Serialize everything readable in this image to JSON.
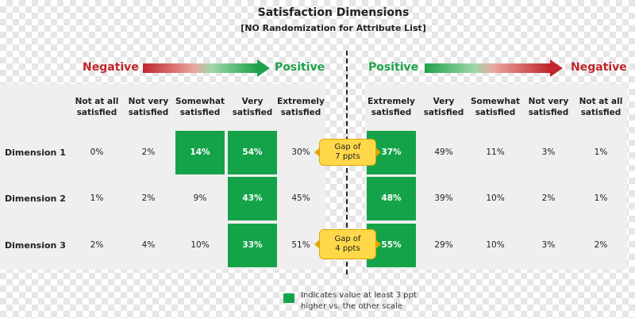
{
  "chart_data": {
    "type": "table",
    "title": "Satisfaction Dimensions",
    "subtitle": "[NO Randomization  for Attribute List]",
    "left_scale": {
      "arrow_start": "Negative",
      "arrow_end": "Positive",
      "columns": [
        "Not at all satisfied",
        "Not very satisfied",
        "Somewhat satisfied",
        "Very satisfied",
        "Extremely satisfied"
      ],
      "rows": [
        {
          "label": "Dimension 1",
          "values": [
            "0%",
            "2%",
            "14%",
            "54%",
            "30%"
          ],
          "highlight": [
            false,
            false,
            true,
            true,
            false
          ]
        },
        {
          "label": "Dimension 2",
          "values": [
            "1%",
            "2%",
            "9%",
            "43%",
            "45%"
          ],
          "highlight": [
            false,
            false,
            false,
            true,
            false
          ]
        },
        {
          "label": "Dimension 3",
          "values": [
            "2%",
            "4%",
            "10%",
            "33%",
            "51%"
          ],
          "highlight": [
            false,
            false,
            false,
            true,
            false
          ]
        }
      ]
    },
    "right_scale": {
      "arrow_start": "Positive",
      "arrow_end": "Negative",
      "columns": [
        "Extremely satisfied",
        "Very satisfied",
        "Somewhat satisfied",
        "Not very satisfied",
        "Not at all satisfied"
      ],
      "rows": [
        {
          "label": "Dimension 1",
          "values": [
            "37%",
            "49%",
            "11%",
            "3%",
            "1%"
          ],
          "highlight": [
            true,
            false,
            false,
            false,
            false
          ]
        },
        {
          "label": "Dimension 2",
          "values": [
            "48%",
            "39%",
            "10%",
            "2%",
            "1%"
          ],
          "highlight": [
            true,
            false,
            false,
            false,
            false
          ]
        },
        {
          "label": "Dimension 3",
          "values": [
            "55%",
            "29%",
            "10%",
            "3%",
            "2%"
          ],
          "highlight": [
            true,
            false,
            false,
            false,
            false
          ]
        }
      ]
    },
    "callouts": [
      {
        "row": "Dimension 1",
        "text": "Gap of\n7 ppts"
      },
      {
        "row": "Dimension 3",
        "text": "Gap of\n4 ppts"
      }
    ],
    "legend": {
      "text": "Indicates value at least 3 ppt\nhigher  vs. the other scale",
      "color": "#15a34a"
    },
    "colors": {
      "green": "#15a34a",
      "negative": "#c0262b",
      "positive": "#20a24a",
      "callout": "#ffd84a",
      "panel": "#efefef"
    }
  }
}
